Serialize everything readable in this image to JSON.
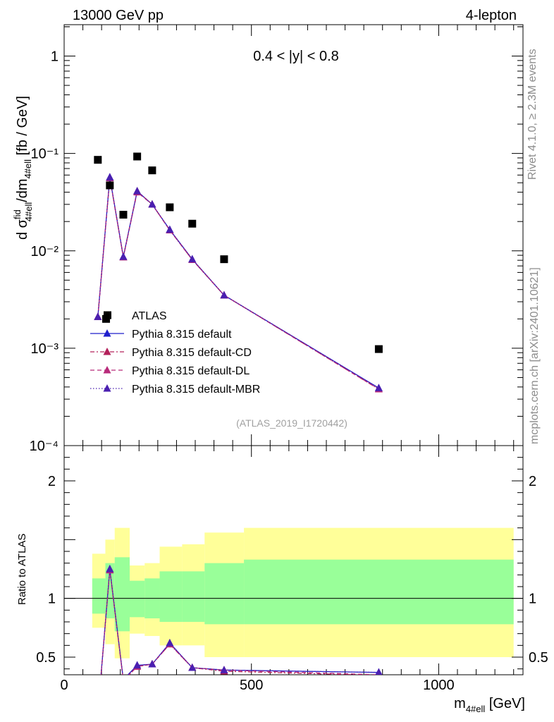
{
  "header": {
    "energy_label": "13000 GeV pp",
    "process_label": "4-lepton",
    "rapidity_label": "0.4 < |y| < 0.8",
    "analysis_id": "(ATLAS_2019_I1720442)",
    "rivet_label": "Rivet 4.1.0, ≥ 2.3M events",
    "mcplots_label": "mcplots.cern.ch [arXiv:2401.10621]"
  },
  "axes": {
    "y_main_label": "d σ^fid_4#ell /dm_4#ell [fb / GeV]",
    "y_ratio_label": "Ratio to ATLAS",
    "x_label": "m_4#ell [GeV]",
    "main_y_ticks": [
      {
        "value": 1,
        "label": "1"
      },
      {
        "value": 0.1,
        "label": "10⁻¹"
      },
      {
        "value": 0.01,
        "label": "10⁻²"
      },
      {
        "value": 0.001,
        "label": "10⁻³"
      },
      {
        "value": 0.0001,
        "label": "10⁻⁴"
      }
    ],
    "ratio_y_ticks": [
      {
        "value": 2,
        "label": "2"
      },
      {
        "value": 1,
        "label": "1"
      },
      {
        "value": 0.5,
        "label": "0.5"
      }
    ],
    "x_ticks": [
      {
        "value": 0,
        "label": "0"
      },
      {
        "value": 500,
        "label": "500"
      },
      {
        "value": 1000,
        "label": "1000"
      }
    ]
  },
  "chart_data": {
    "type": "scatter",
    "title": "4-lepton, 0.4 < |y| < 0.8",
    "xlabel": "m_4#ell [GeV]",
    "ylabel": "d sigma^fid_4#ell / dm_4#ell [fb / GeV]",
    "xlim": [
      0,
      1225
    ],
    "ylim_main": [
      0.0001,
      2.1
    ],
    "yscale_main": "log",
    "ylim_ratio": [
      0.35,
      2.3
    ],
    "legend_position": "lower-left",
    "bins": [
      {
        "lo": 75,
        "hi": 110
      },
      {
        "lo": 110,
        "hi": 135
      },
      {
        "lo": 135,
        "hi": 175
      },
      {
        "lo": 175,
        "hi": 215
      },
      {
        "lo": 215,
        "hi": 255
      },
      {
        "lo": 255,
        "hi": 315
      },
      {
        "lo": 315,
        "hi": 375
      },
      {
        "lo": 375,
        "hi": 480
      },
      {
        "lo": 480,
        "hi": 1200
      }
    ],
    "data": {
      "name": "ATLAS",
      "x": [
        90,
        122,
        158,
        195,
        235,
        282,
        342,
        427,
        840
      ],
      "y": [
        0.086,
        0.047,
        0.0235,
        0.093,
        0.067,
        0.028,
        0.019,
        0.0082,
        0.00098
      ],
      "extra_point": {
        "x": 112,
        "y": 0.002
      },
      "band_inner": [
        [
          0.87,
          1.17
        ],
        [
          0.83,
          1.3
        ],
        [
          0.72,
          1.35
        ],
        [
          0.84,
          1.15
        ],
        [
          0.83,
          1.17
        ],
        [
          0.8,
          1.23
        ],
        [
          0.8,
          1.23
        ],
        [
          0.78,
          1.3
        ],
        [
          0.78,
          1.33
        ]
      ],
      "band_outer": [
        [
          0.75,
          1.38
        ],
        [
          0.61,
          1.5
        ],
        [
          0.49,
          1.6
        ],
        [
          0.7,
          1.28
        ],
        [
          0.68,
          1.3
        ],
        [
          0.6,
          1.44
        ],
        [
          0.6,
          1.46
        ],
        [
          0.5,
          1.56
        ],
        [
          0.5,
          1.6
        ]
      ]
    },
    "series": [
      {
        "name": "Pythia 8.315 default",
        "color": "#1f1fcc",
        "style": "solid",
        "x": [
          90,
          122,
          158,
          195,
          235,
          282,
          342,
          427,
          840
        ],
        "y": [
          0.0021,
          0.057,
          0.0087,
          0.041,
          0.03,
          0.0165,
          0.0082,
          0.0035,
          0.00039
        ],
        "ratio": [
          0.025,
          1.25,
          0.31,
          0.43,
          0.44,
          0.62,
          0.41,
          0.39,
          0.37
        ]
      },
      {
        "name": "Pythia 8.315 default-CD",
        "color": "#b3205a",
        "style": "dashdot",
        "x": [
          90,
          122,
          158,
          195,
          235,
          282,
          342,
          427,
          840
        ],
        "y": [
          0.0021,
          0.056,
          0.0086,
          0.041,
          0.03,
          0.0163,
          0.0081,
          0.0035,
          0.00038
        ],
        "ratio": [
          0.025,
          1.24,
          0.3,
          0.42,
          0.44,
          0.61,
          0.41,
          0.38,
          0.345
        ]
      },
      {
        "name": "Pythia 8.315 default-DL",
        "color": "#b82a7a",
        "style": "dashed",
        "x": [
          90,
          122,
          158,
          195,
          235,
          282,
          342,
          427,
          840
        ],
        "y": [
          0.0021,
          0.056,
          0.0086,
          0.04,
          0.03,
          0.0163,
          0.0081,
          0.0035,
          0.00038
        ],
        "ratio": [
          0.025,
          1.24,
          0.3,
          0.42,
          0.44,
          0.61,
          0.41,
          0.39,
          0.35
        ]
      },
      {
        "name": "Pythia 8.315 default-MBR",
        "color": "#4a1fb0",
        "style": "dotted",
        "x": [
          90,
          122,
          158,
          195,
          235,
          282,
          342,
          427,
          840
        ],
        "y": [
          0.0021,
          0.057,
          0.0087,
          0.041,
          0.03,
          0.0165,
          0.0082,
          0.0035,
          0.00039
        ],
        "ratio": [
          0.025,
          1.25,
          0.31,
          0.43,
          0.44,
          0.62,
          0.41,
          0.39,
          0.37
        ]
      }
    ],
    "colors": {
      "inner_band": "#99ff99",
      "outer_band": "#ffff99",
      "data_marker": "#000000"
    }
  }
}
